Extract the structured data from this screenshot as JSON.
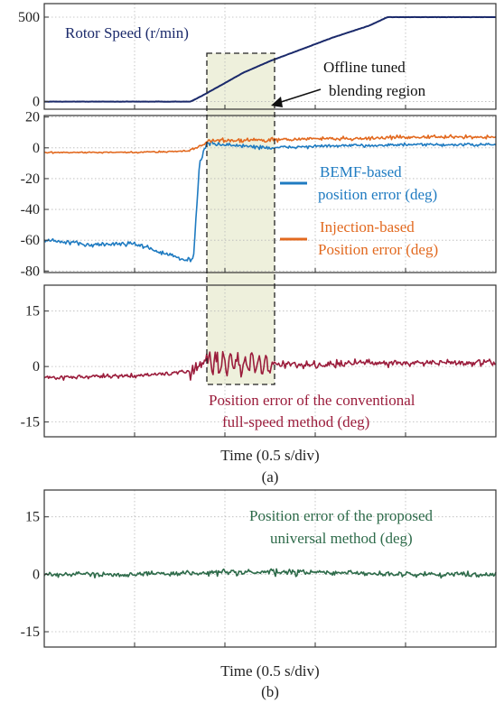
{
  "colors": {
    "speed": "#1b2a6b",
    "bemf": "#1f7bc1",
    "injection": "#e2691f",
    "conventional": "#9b1d3c",
    "proposed": "#2e6b4a",
    "blend_fill": "#eef0dc",
    "grid": "#b8b8b8"
  },
  "chart_data": [
    {
      "id": "speed",
      "type": "line",
      "ylim": [
        -45,
        580
      ],
      "yticks": [
        "500",
        "0"
      ],
      "ytick_values": [
        500,
        0
      ],
      "series": [
        {
          "name": "Rotor Speed (r/min)",
          "color": "#1b2a6b",
          "x": [
            0,
            1.62,
            1.75,
            2.2,
            2.5,
            2.8,
            3.2,
            3.6,
            3.8,
            4.5,
            5
          ],
          "y": [
            0,
            0,
            35,
            170,
            240,
            300,
            380,
            450,
            500,
            500,
            500
          ]
        }
      ],
      "annotations": [
        "Rotor Speed (r/min)",
        "Offline tuned",
        "blending region"
      ]
    },
    {
      "id": "fusion",
      "type": "line",
      "ylim": [
        -81,
        21
      ],
      "yticks": [
        "20",
        "0",
        "-20",
        "-40",
        "-60",
        "-80"
      ],
      "ytick_values": [
        20,
        0,
        -20,
        -40,
        -60,
        -80
      ],
      "series": [
        {
          "name": "BEMF-based position error (deg)",
          "color": "#1f7bc1",
          "x": [
            0,
            0.5,
            1.0,
            1.3,
            1.55,
            1.65,
            1.72,
            1.8,
            2.0,
            2.5,
            3.0,
            4.0,
            5.0
          ],
          "y": [
            -60,
            -63,
            -62,
            -68,
            -73,
            -72,
            -10,
            3,
            2,
            0,
            1,
            2,
            2
          ]
        },
        {
          "name": "Injection-based Position error (deg)",
          "color": "#e2691f",
          "x": [
            0,
            1.0,
            1.6,
            1.8,
            2.0,
            2.5,
            3.0,
            3.5,
            4.0,
            4.5,
            5.0
          ],
          "y": [
            -3,
            -3,
            -2,
            4,
            5,
            5,
            6,
            6,
            7,
            7,
            7
          ]
        }
      ],
      "annotations": [
        "BEMF-based",
        "position error (deg)",
        "Injection-based",
        "Position error (deg)"
      ]
    },
    {
      "id": "conventional",
      "type": "line",
      "ylim": [
        -19,
        22
      ],
      "yticks": [
        "15",
        "0",
        "-15"
      ],
      "ytick_values": [
        15,
        0,
        -15
      ],
      "series": [
        {
          "name": "Position error of the conventional full-speed method (deg)",
          "color": "#9b1d3c",
          "x": [
            0,
            1.0,
            1.6,
            1.8,
            2.0,
            2.5,
            3.0,
            3.5,
            4.0,
            4.5,
            5.0
          ],
          "y": [
            -3,
            -2.5,
            -1.5,
            1.5,
            1.0,
            0.5,
            0.5,
            1.0,
            1.0,
            1.0,
            1.0
          ]
        }
      ],
      "annotations": [
        "Position error of the conventional",
        "full-speed method (deg)"
      ],
      "xlabel": "Time (0.5 s/div)",
      "sublabel": "(a)"
    },
    {
      "id": "proposed",
      "type": "line",
      "ylim": [
        -19,
        22
      ],
      "yticks": [
        "15",
        "0",
        "-15"
      ],
      "ytick_values": [
        15,
        0,
        -15
      ],
      "series": [
        {
          "name": "Position error of the proposed universal method (deg)",
          "color": "#2e6b4a",
          "x": [
            0,
            1.0,
            2.0,
            3.0,
            4.0,
            5.0
          ],
          "y": [
            0,
            0,
            0.5,
            0.5,
            0,
            0
          ]
        }
      ],
      "annotations": [
        "Position error of the proposed",
        "universal method (deg)"
      ],
      "xlabel": "Time (0.5 s/div)",
      "sublabel": "(b)"
    }
  ]
}
